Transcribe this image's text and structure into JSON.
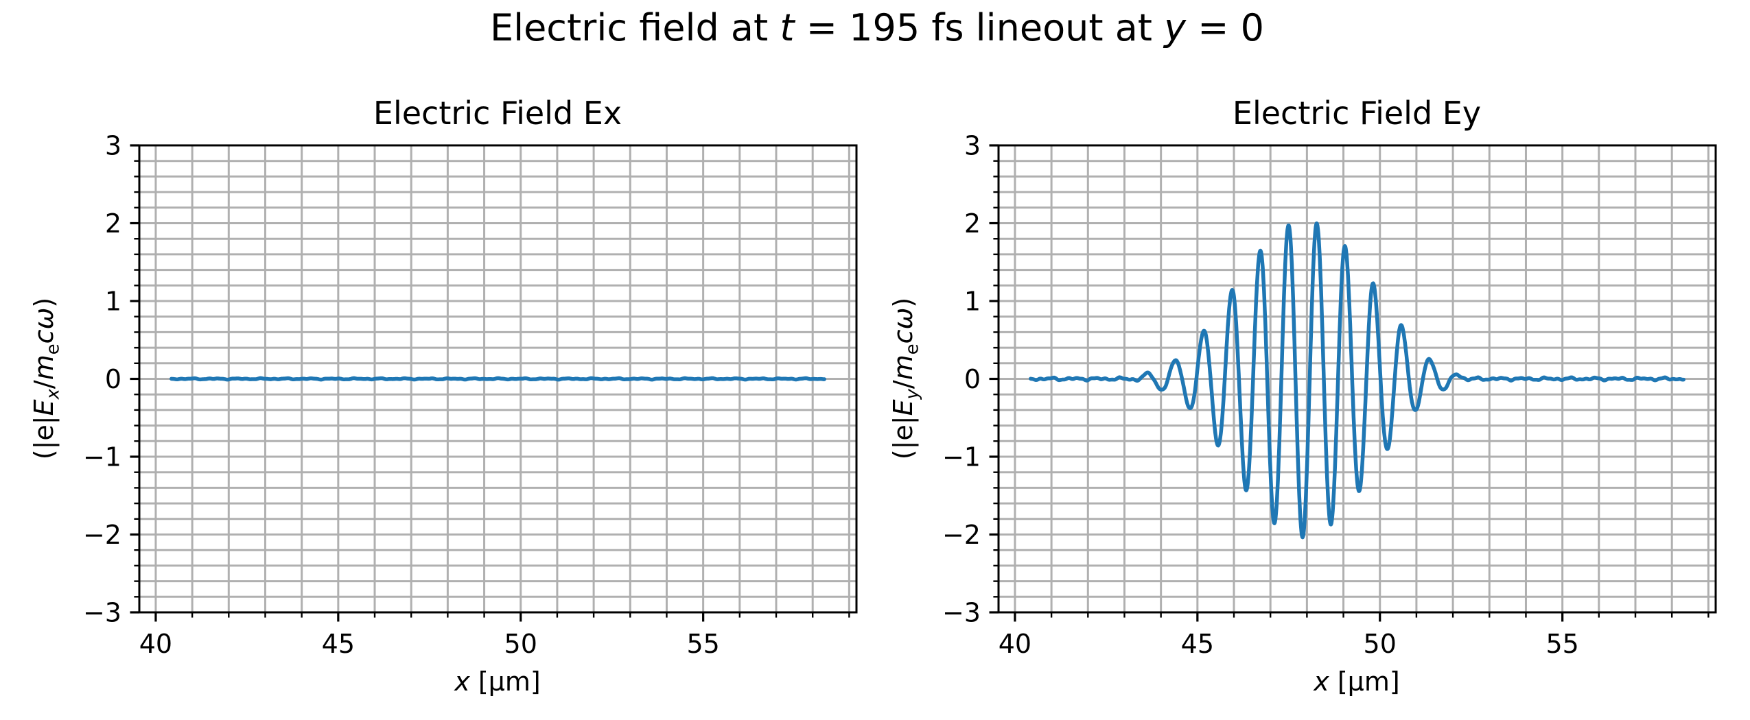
{
  "figure": {
    "suptitle": {
      "part1": "Electric field at ",
      "t_symbol": "t",
      "part2": " = 195 fs lineout at ",
      "y_symbol": "y",
      "part3": " = 0"
    },
    "background_color": "#ffffff",
    "text_color": "#000000"
  },
  "chart_data": [
    {
      "type": "line",
      "title": "Electric Field Ex",
      "xlabel_var": "x",
      "xlabel_unit": " [μm]",
      "ylabel_parts": {
        "pre": "(|e|",
        "E": "E",
        "E_sub": "x",
        "slash": "/",
        "m": "m",
        "m_sub": "e",
        "c": "c",
        "omega": "ω",
        "post": ")"
      },
      "xlim": [
        39.55,
        59.2
      ],
      "ylim": [
        -3,
        3
      ],
      "x_major_ticks": [
        40,
        45,
        50,
        55
      ],
      "x_tick_labels": [
        "40",
        "45",
        "50",
        "55"
      ],
      "x_minor_step": 1,
      "y_major_ticks": [
        3,
        2,
        1,
        0,
        -1,
        -2,
        -3
      ],
      "y_tick_labels": [
        "3",
        "2",
        "1",
        "0",
        "−1",
        "−2",
        "−3"
      ],
      "y_minor_step": 0.2,
      "grid": true,
      "grid_color": "#b0b0b0",
      "line_color": "#1f77b4",
      "series": {
        "name": "Ex",
        "summary": "flat line at 0 with tiny numerical noise (no Ex component)",
        "x_start": 40.43,
        "x_end": 58.32,
        "baseline": 0,
        "noise_amplitude": 0.01,
        "pulse": null
      }
    },
    {
      "type": "line",
      "title": "Electric Field Ey",
      "xlabel_var": "x",
      "xlabel_unit": " [μm]",
      "ylabel_parts": {
        "pre": "(|e|",
        "E": "E",
        "E_sub": "y",
        "slash": "/",
        "m": "m",
        "m_sub": "e",
        "c": "c",
        "omega": "ω",
        "post": ")"
      },
      "xlim": [
        39.55,
        59.2
      ],
      "ylim": [
        -3,
        3
      ],
      "x_major_ticks": [
        40,
        45,
        50,
        55
      ],
      "x_tick_labels": [
        "40",
        "45",
        "50",
        "55"
      ],
      "x_minor_step": 1,
      "y_major_ticks": [
        3,
        2,
        1,
        0,
        -1,
        -2,
        -3
      ],
      "y_tick_labels": [
        "3",
        "2",
        "1",
        "0",
        "−1",
        "−2",
        "−3"
      ],
      "y_minor_step": 0.2,
      "grid": true,
      "grid_color": "#b0b0b0",
      "line_color": "#1f77b4",
      "series": {
        "name": "Ey",
        "summary": "Gaussian-enveloped laser pulse centered near x = 48.1 um, peak ~2.0, flat ~0 elsewhere",
        "x_start": 40.43,
        "x_end": 58.32,
        "baseline": 0,
        "noise_amplitude": 0.022,
        "pulse": {
          "carrier_wavelength_um": 0.776,
          "carrier_zero_x": 48.076,
          "center_um": 48.1,
          "peak_amplitude": 2.03,
          "envelope_points": [
            [
              43.2,
              0
            ],
            [
              43.61,
              0.06
            ],
            [
              44.0,
              0.14
            ],
            [
              44.39,
              0.235
            ],
            [
              44.78,
              0.38
            ],
            [
              45.17,
              0.63
            ],
            [
              45.55,
              0.85
            ],
            [
              45.94,
              1.15
            ],
            [
              46.33,
              1.42
            ],
            [
              46.72,
              1.65
            ],
            [
              47.11,
              1.84
            ],
            [
              47.49,
              1.97
            ],
            [
              47.88,
              2.03
            ],
            [
              48.27,
              2.0
            ],
            [
              48.66,
              1.88
            ],
            [
              49.05,
              1.71
            ],
            [
              49.44,
              1.45
            ],
            [
              49.82,
              1.23
            ],
            [
              50.21,
              0.9
            ],
            [
              50.6,
              0.68
            ],
            [
              50.99,
              0.38
            ],
            [
              51.38,
              0.24
            ],
            [
              51.77,
              0.12
            ],
            [
              52.15,
              0.05
            ],
            [
              52.5,
              0
            ]
          ],
          "peaks": [
            [
              44.39,
              0.24
            ],
            [
              45.17,
              0.63
            ],
            [
              45.94,
              1.15
            ],
            [
              46.72,
              1.65
            ],
            [
              47.49,
              1.97
            ],
            [
              48.27,
              2.0
            ],
            [
              49.05,
              1.71
            ],
            [
              49.82,
              1.23
            ],
            [
              50.6,
              0.68
            ],
            [
              51.38,
              0.24
            ]
          ],
          "troughs": [
            [
              44.78,
              -0.38
            ],
            [
              45.55,
              -0.85
            ],
            [
              46.33,
              -1.42
            ],
            [
              47.11,
              -1.84
            ],
            [
              47.88,
              -2.03
            ],
            [
              48.66,
              -1.88
            ],
            [
              49.44,
              -1.45
            ],
            [
              50.21,
              -0.9
            ],
            [
              50.99,
              -0.38
            ],
            [
              51.77,
              -0.12
            ]
          ]
        }
      }
    }
  ]
}
